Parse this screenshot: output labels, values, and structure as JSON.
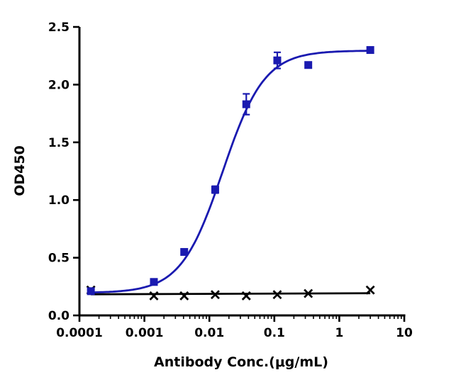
{
  "chart_data": {
    "type": "scatter",
    "title": "",
    "xlabel": "Antibody Conc.(μg/mL)",
    "ylabel": "OD450",
    "xscale": "log",
    "xlim": [
      0.0001,
      10
    ],
    "ylim": [
      0.0,
      2.5
    ],
    "xticks": [
      0.0001,
      0.001,
      0.01,
      0.1,
      1,
      10
    ],
    "xtick_labels": [
      "0.0001",
      "0.001",
      "0.01",
      "0.1",
      "1",
      "10"
    ],
    "yticks": [
      0.0,
      0.5,
      1.0,
      1.5,
      2.0,
      2.5
    ],
    "ytick_labels": [
      "0.0",
      "0.5",
      "1.0",
      "1.5",
      "2.0",
      "2.5"
    ],
    "grid": false,
    "legend": "none",
    "axis_color": "#000000",
    "series": [
      {
        "name": "blue-squares",
        "marker": "square",
        "color": "#1a1ab0",
        "x": [
          0.00015,
          0.0014,
          0.0041,
          0.0123,
          0.037,
          0.111,
          0.333,
          3
        ],
        "y": [
          0.21,
          0.29,
          0.55,
          1.09,
          1.83,
          2.21,
          2.17,
          2.3
        ],
        "yerr": [
          0.02,
          0.02,
          0.02,
          0.03,
          0.09,
          0.07,
          0.02,
          0.02
        ],
        "fit": {
          "model": "4pl",
          "bottom": 0.195,
          "top": 2.295,
          "ec50": 0.016,
          "hill": 1.35
        }
      },
      {
        "name": "black-x",
        "marker": "x",
        "color": "#000000",
        "x": [
          0.00015,
          0.0014,
          0.0041,
          0.0123,
          0.037,
          0.111,
          0.333,
          3
        ],
        "y": [
          0.22,
          0.17,
          0.17,
          0.18,
          0.17,
          0.18,
          0.19,
          0.22
        ],
        "yerr": [
          0,
          0,
          0,
          0,
          0,
          0,
          0,
          0
        ],
        "fit": {
          "model": "linear"
        }
      }
    ]
  }
}
